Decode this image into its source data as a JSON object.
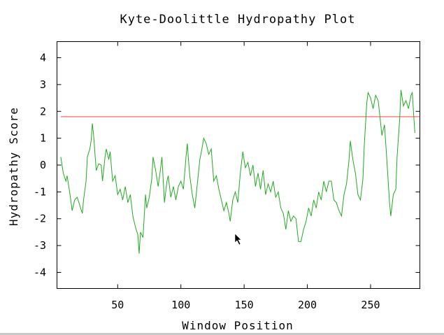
{
  "chart_data": {
    "type": "line",
    "title": "Kyte-Doolittle Hydropathy Plot",
    "xlabel": "Window Position",
    "ylabel": "Hydropathy Score",
    "xlim": [
      2,
      289
    ],
    "ylim": [
      -4.6,
      4.6
    ],
    "xticks": [
      50,
      100,
      150,
      200,
      250
    ],
    "yticks": [
      -4,
      -3,
      -2,
      -1,
      0,
      1,
      2,
      3,
      4
    ],
    "grid": false,
    "reference_line": {
      "y": 1.8,
      "color": "#ff4040"
    },
    "series": [
      {
        "color": "#22aa22",
        "points": [
          [
            5,
            0.3
          ],
          [
            7,
            -0.3
          ],
          [
            9,
            -0.6
          ],
          [
            10,
            -0.4
          ],
          [
            12,
            -1.0
          ],
          [
            14,
            -1.7
          ],
          [
            16,
            -1.3
          ],
          [
            18,
            -1.2
          ],
          [
            20,
            -1.5
          ],
          [
            22,
            -1.8
          ],
          [
            23,
            -1.3
          ],
          [
            25,
            -0.6
          ],
          [
            26,
            0.3
          ],
          [
            28,
            0.6
          ],
          [
            29,
            0.9
          ],
          [
            30,
            1.55
          ],
          [
            31,
            1.1
          ],
          [
            33,
            -0.2
          ],
          [
            35,
            0.05
          ],
          [
            37,
            0.0
          ],
          [
            38,
            -0.6
          ],
          [
            40,
            0.3
          ],
          [
            41,
            0.6
          ],
          [
            43,
            0.2
          ],
          [
            44,
            0.5
          ],
          [
            46,
            -0.6
          ],
          [
            48,
            -0.4
          ],
          [
            50,
            -1.1
          ],
          [
            52,
            -0.9
          ],
          [
            54,
            -1.3
          ],
          [
            56,
            -0.8
          ],
          [
            58,
            -1.4
          ],
          [
            60,
            -1.1
          ],
          [
            62,
            -1.9
          ],
          [
            64,
            -2.3
          ],
          [
            66,
            -2.6
          ],
          [
            67,
            -3.3
          ],
          [
            68,
            -2.5
          ],
          [
            70,
            -2.7
          ],
          [
            72,
            -1.1
          ],
          [
            73,
            -1.6
          ],
          [
            75,
            -1.2
          ],
          [
            77,
            -0.5
          ],
          [
            78,
            0.3
          ],
          [
            80,
            -0.2
          ],
          [
            82,
            -0.8
          ],
          [
            84,
            -0.1
          ],
          [
            85,
            0.3
          ],
          [
            87,
            -1.4
          ],
          [
            89,
            -0.6
          ],
          [
            90,
            -0.4
          ],
          [
            92,
            -1.2
          ],
          [
            94,
            -0.8
          ],
          [
            96,
            -1.3
          ],
          [
            98,
            -0.8
          ],
          [
            100,
            -0.6
          ],
          [
            102,
            -0.9
          ],
          [
            104,
            0.3
          ],
          [
            105,
            0.8
          ],
          [
            107,
            -0.4
          ],
          [
            109,
            -1.1
          ],
          [
            111,
            -1.6
          ],
          [
            113,
            -0.7
          ],
          [
            115,
            0.2
          ],
          [
            117,
            0.7
          ],
          [
            118,
            1.0
          ],
          [
            120,
            0.8
          ],
          [
            122,
            0.4
          ],
          [
            124,
            0.6
          ],
          [
            126,
            -0.6
          ],
          [
            128,
            -0.4
          ],
          [
            130,
            -0.9
          ],
          [
            132,
            -1.3
          ],
          [
            134,
            -1.7
          ],
          [
            136,
            -1.4
          ],
          [
            138,
            -1.8
          ],
          [
            139,
            -2.1
          ],
          [
            141,
            -1.3
          ],
          [
            143,
            -1.0
          ],
          [
            145,
            -1.4
          ],
          [
            147,
            -0.3
          ],
          [
            149,
            0.5
          ],
          [
            151,
            -0.1
          ],
          [
            153,
            0.1
          ],
          [
            155,
            -0.4
          ],
          [
            157,
            0.0
          ],
          [
            159,
            -0.8
          ],
          [
            161,
            -0.3
          ],
          [
            163,
            -0.9
          ],
          [
            165,
            -0.2
          ],
          [
            167,
            -1.1
          ],
          [
            169,
            -0.7
          ],
          [
            171,
            -1.0
          ],
          [
            173,
            -0.6
          ],
          [
            175,
            -1.2
          ],
          [
            177,
            -1.0
          ],
          [
            179,
            -1.6
          ],
          [
            181,
            -1.8
          ],
          [
            183,
            -2.4
          ],
          [
            185,
            -1.7
          ],
          [
            187,
            -2.1
          ],
          [
            189,
            -1.9
          ],
          [
            191,
            -2.0
          ],
          [
            193,
            -2.85
          ],
          [
            195,
            -2.85
          ],
          [
            197,
            -2.4
          ],
          [
            199,
            -2.1
          ],
          [
            201,
            -1.6
          ],
          [
            203,
            -1.9
          ],
          [
            205,
            -1.3
          ],
          [
            207,
            -1.6
          ],
          [
            209,
            -1.0
          ],
          [
            211,
            -1.3
          ],
          [
            213,
            -0.6
          ],
          [
            215,
            -1.0
          ],
          [
            217,
            -0.6
          ],
          [
            219,
            -0.6
          ],
          [
            221,
            -1.3
          ],
          [
            223,
            -1.4
          ],
          [
            225,
            -1.7
          ],
          [
            227,
            -1.9
          ],
          [
            229,
            -1.1
          ],
          [
            231,
            -0.7
          ],
          [
            233,
            0.2
          ],
          [
            234,
            0.9
          ],
          [
            236,
            0.2
          ],
          [
            238,
            -0.3
          ],
          [
            240,
            -1.1
          ],
          [
            242,
            -1.3
          ],
          [
            244,
            -0.5
          ],
          [
            245,
            0.7
          ],
          [
            247,
            2.3
          ],
          [
            248,
            2.7
          ],
          [
            250,
            2.5
          ],
          [
            252,
            2.1
          ],
          [
            254,
            2.6
          ],
          [
            256,
            2.4
          ],
          [
            257,
            2.0
          ],
          [
            259,
            1.1
          ],
          [
            261,
            1.5
          ],
          [
            263,
            0.1
          ],
          [
            265,
            -1.4
          ],
          [
            266,
            -1.9
          ],
          [
            268,
            -1.1
          ],
          [
            270,
            -0.9
          ],
          [
            271,
            0.3
          ],
          [
            273,
            1.7
          ],
          [
            274,
            2.8
          ],
          [
            276,
            2.2
          ],
          [
            278,
            2.4
          ],
          [
            280,
            2.1
          ],
          [
            282,
            2.6
          ],
          [
            283,
            2.7
          ],
          [
            285,
            1.2
          ]
        ]
      }
    ]
  }
}
